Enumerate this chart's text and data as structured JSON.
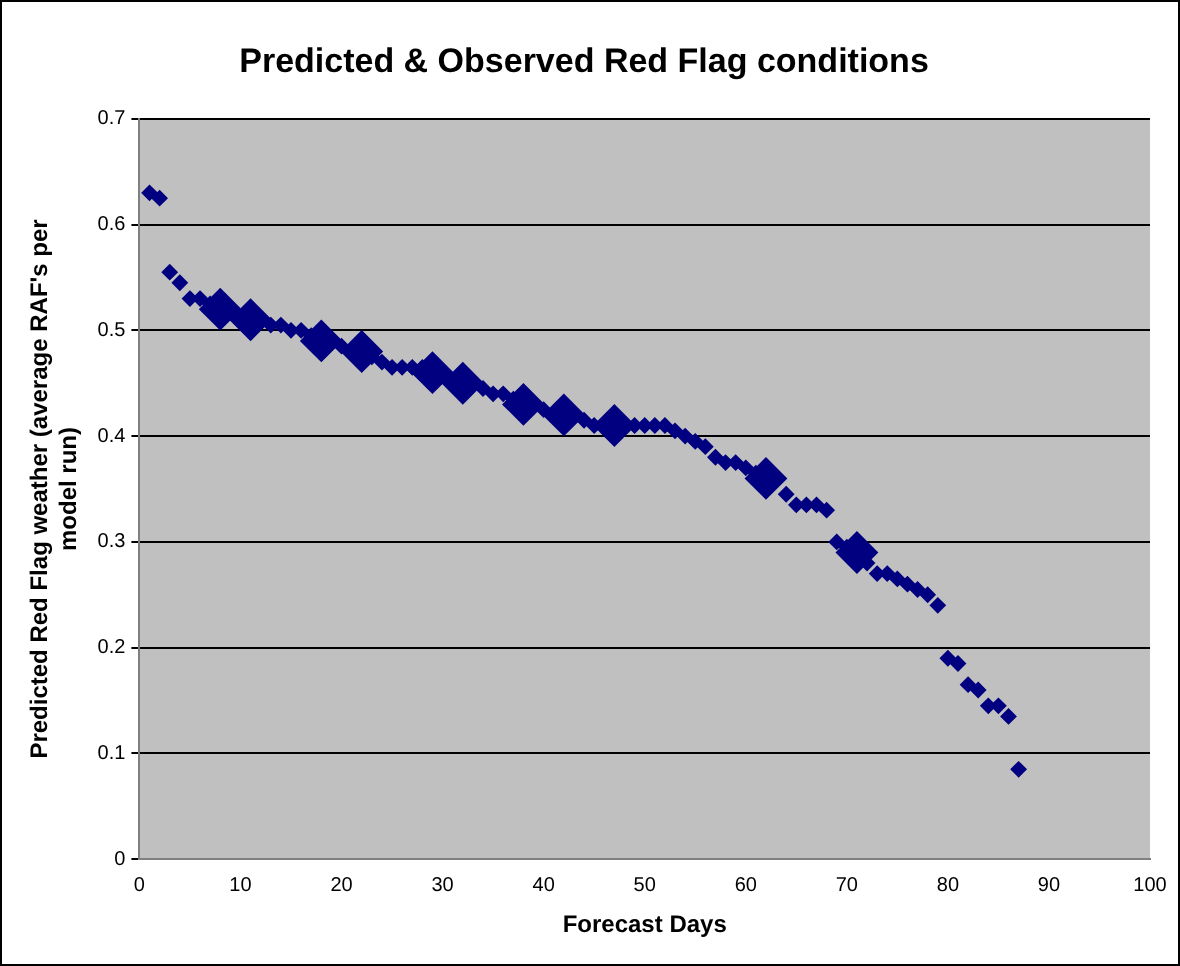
{
  "chart_data": {
    "type": "scatter",
    "title": "Predicted & Observed Red Flag conditions",
    "xlabel": "Forecast Days",
    "ylabel": "Predicted Red Flag weather (average RAF's per model run)",
    "xlim": [
      0,
      100
    ],
    "xticks": [
      0,
      10,
      20,
      30,
      40,
      50,
      60,
      70,
      80,
      90,
      100
    ],
    "ylim": [
      0,
      0.7
    ],
    "yticks": [
      0,
      0.1,
      0.2,
      0.3,
      0.4,
      0.5,
      0.6,
      0.7
    ],
    "grid": "y",
    "marker": "diamond",
    "legend": false,
    "series": [
      {
        "color": "#000080",
        "x": [
          1,
          2,
          3,
          4,
          5,
          6,
          7,
          13,
          14,
          15,
          16,
          17,
          20,
          23,
          24,
          25,
          26,
          27,
          28,
          34,
          35,
          36,
          37,
          40,
          44,
          45,
          49,
          50,
          51,
          52,
          53,
          54,
          55,
          56,
          57,
          58,
          59,
          60,
          61,
          64,
          65,
          66,
          67,
          68,
          69,
          70,
          72,
          73,
          74,
          75,
          76,
          77,
          78,
          79,
          80,
          81,
          82,
          83,
          84,
          85,
          86,
          87
        ],
        "values": [
          0.63,
          0.625,
          0.555,
          0.545,
          0.53,
          0.53,
          0.525,
          0.505,
          0.505,
          0.5,
          0.5,
          0.495,
          0.485,
          0.475,
          0.47,
          0.465,
          0.465,
          0.465,
          0.465,
          0.445,
          0.44,
          0.44,
          0.435,
          0.425,
          0.415,
          0.41,
          0.41,
          0.41,
          0.41,
          0.41,
          0.405,
          0.4,
          0.395,
          0.39,
          0.38,
          0.375,
          0.375,
          0.37,
          0.365,
          0.345,
          0.335,
          0.335,
          0.335,
          0.33,
          0.3,
          0.295,
          0.28,
          0.27,
          0.27,
          0.265,
          0.26,
          0.255,
          0.25,
          0.24,
          0.19,
          0.185,
          0.165,
          0.16,
          0.145,
          0.145,
          0.135,
          0.085
        ]
      },
      {
        "color": "#000080",
        "x": [
          8,
          11,
          18,
          22,
          29,
          32,
          38,
          42,
          47,
          62,
          71
        ],
        "values": [
          0.52,
          0.51,
          0.49,
          0.48,
          0.46,
          0.45,
          0.43,
          0.42,
          0.41,
          0.36,
          0.29
        ]
      }
    ]
  }
}
